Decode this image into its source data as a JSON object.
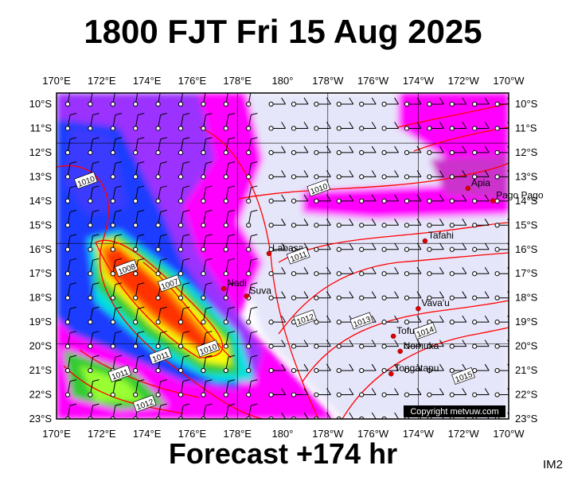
{
  "header": {
    "title": "1800 FJT Fri 15 Aug 2025"
  },
  "footer": {
    "forecast": "Forecast +174 hr",
    "code": "IM2"
  },
  "map": {
    "lon_labels": [
      "170°E",
      "172°E",
      "174°E",
      "176°E",
      "178°E",
      "180°",
      "178°W",
      "176°W",
      "174°W",
      "172°W",
      "170°W"
    ],
    "lat_labels": [
      "10°S",
      "11°S",
      "12°S",
      "13°S",
      "14°S",
      "15°S",
      "16°S",
      "17°S",
      "18°S",
      "19°S",
      "20°S",
      "21°S",
      "22°S",
      "23°S"
    ],
    "places": [
      {
        "name": "Apia",
        "lon": -171.8,
        "lat": -13.8
      },
      {
        "name": "Pago Pago",
        "lon": -170.7,
        "lat": -14.3
      },
      {
        "name": "Tafahi",
        "lon": -173.7,
        "lat": -15.9
      },
      {
        "name": "Labasa",
        "lon": 179.4,
        "lat": -16.4
      },
      {
        "name": "Nadi",
        "lon": 177.4,
        "lat": -17.8
      },
      {
        "name": "Suva",
        "lon": 178.4,
        "lat": -18.1
      },
      {
        "name": "Vava'u",
        "lon": -174.0,
        "lat": -18.6
      },
      {
        "name": "Tofua",
        "lon": -175.1,
        "lat": -19.7
      },
      {
        "name": "Nomuka",
        "lon": -174.8,
        "lat": -20.3
      },
      {
        "name": "Tongatapu",
        "lon": -175.2,
        "lat": -21.2
      }
    ],
    "isobar_labels": [
      {
        "text": "1010",
        "lon": 171.3,
        "lat": -13.5
      },
      {
        "text": "1010",
        "lon": -178.4,
        "lat": -13.8
      },
      {
        "text": "1011",
        "lon": -179.3,
        "lat": -16.5
      },
      {
        "text": "1008",
        "lon": 173.1,
        "lat": -17.0
      },
      {
        "text": "1007",
        "lon": 175.0,
        "lat": -17.6
      },
      {
        "text": "1012",
        "lon": -179.0,
        "lat": -19.0
      },
      {
        "text": "1013",
        "lon": -176.5,
        "lat": -19.1
      },
      {
        "text": "1014",
        "lon": -173.7,
        "lat": -19.5
      },
      {
        "text": "1010",
        "lon": 176.7,
        "lat": -20.2
      },
      {
        "text": "1011",
        "lon": 174.6,
        "lat": -20.5
      },
      {
        "text": "1011",
        "lon": 172.8,
        "lat": -21.2
      },
      {
        "text": "1015",
        "lon": -172.0,
        "lat": -21.3
      },
      {
        "text": "1012",
        "lon": 173.9,
        "lat": -22.4
      }
    ],
    "copyright": "Copyright metvuw.com",
    "colors": {
      "ocean_calm": "#e6e6fa",
      "rain_light": "#ff00ff",
      "rain_mod": "#9b30ff",
      "rain_heavy": "#0000ff",
      "isobar": "#ff0000"
    }
  }
}
